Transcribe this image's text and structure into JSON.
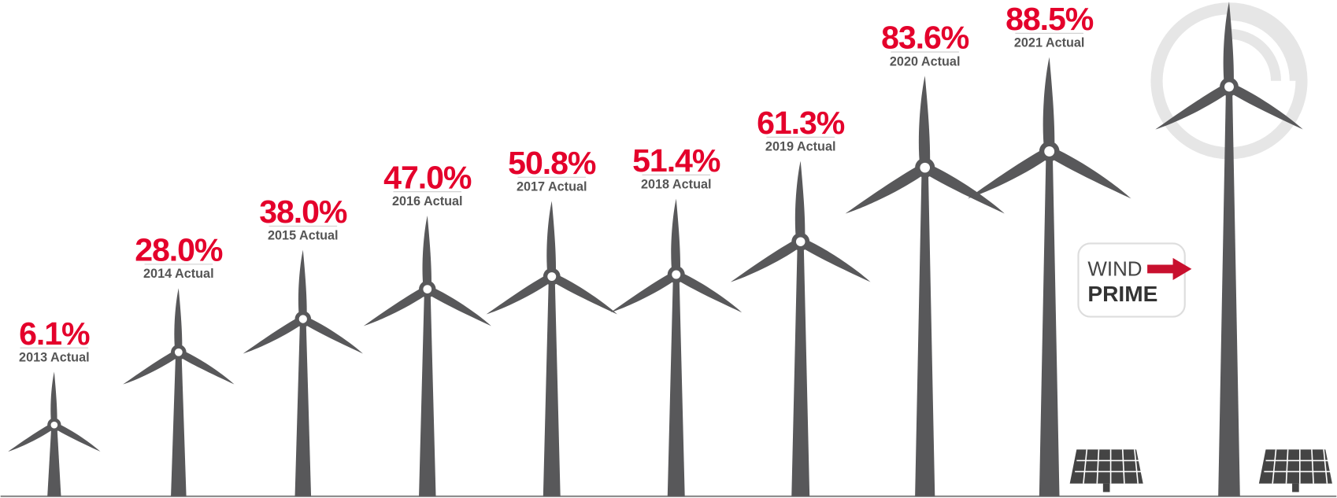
{
  "chart_data": {
    "type": "pictograph",
    "categories": [
      "2013 Actual",
      "2014 Actual",
      "2015 Actual",
      "2016 Actual",
      "2017 Actual",
      "2018 Actual",
      "2019 Actual",
      "2020 Actual",
      "2021 Actual"
    ],
    "values": [
      6.1,
      28.0,
      38.0,
      47.0,
      50.8,
      51.4,
      61.3,
      83.6,
      88.5
    ],
    "value_labels": [
      "6.1%",
      "28.0%",
      "38.0%",
      "47.0%",
      "50.8%",
      "51.4%",
      "61.3%",
      "83.6%",
      "88.5%"
    ],
    "color": "#58585a",
    "label_color": "#e4002b",
    "annotations": [
      "WIND",
      "PRIME"
    ]
  }
}
